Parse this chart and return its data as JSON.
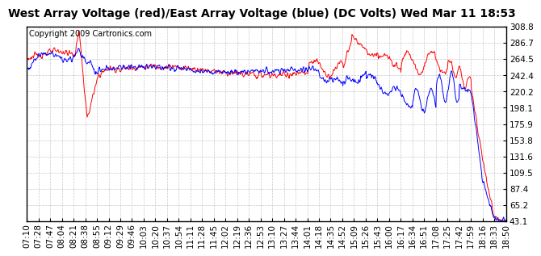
{
  "title": "West Array Voltage (red)/East Array Voltage (blue) (DC Volts) Wed Mar 11 18:53",
  "copyright": "Copyright 2009 Cartronics.com",
  "y_min": 43.1,
  "y_max": 308.8,
  "y_ticks": [
    43.1,
    65.2,
    87.4,
    109.5,
    131.6,
    153.8,
    175.9,
    198.1,
    220.2,
    242.4,
    264.5,
    286.7,
    308.8
  ],
  "x_labels": [
    "07:10",
    "07:28",
    "07:47",
    "08:04",
    "08:21",
    "08:38",
    "08:55",
    "09:12",
    "09:29",
    "09:46",
    "10:03",
    "10:20",
    "10:37",
    "10:54",
    "11:11",
    "11:28",
    "11:45",
    "12:02",
    "12:19",
    "12:36",
    "12:53",
    "13:10",
    "13:27",
    "13:44",
    "14:01",
    "14:18",
    "14:35",
    "14:52",
    "15:09",
    "15:26",
    "15:43",
    "16:00",
    "16:17",
    "16:34",
    "16:51",
    "17:08",
    "17:25",
    "17:42",
    "17:59",
    "18:16",
    "18:33",
    "18:50"
  ],
  "background_color": "#ffffff",
  "grid_color": "#bbbbbb",
  "red_color": "#ff0000",
  "blue_color": "#0000ff",
  "title_fontsize": 10,
  "copyright_fontsize": 7,
  "tick_fontsize": 7.5
}
